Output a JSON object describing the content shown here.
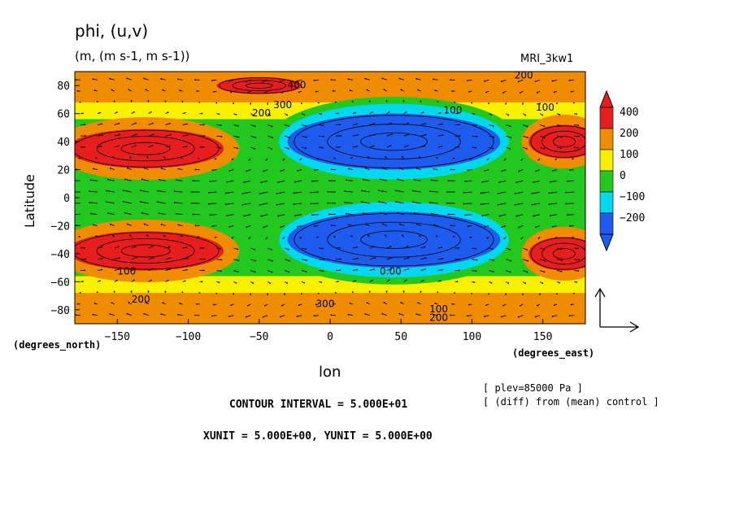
{
  "chart_data": {
    "type": "heatmap",
    "title": "phi, (u,v)",
    "units": "(m, (m s-1, m s-1))",
    "model": "MRI_3kw1",
    "xlabel": "lon",
    "ylabel": "Latitude",
    "x_unit_label": "(degrees_east)",
    "y_unit_label": "(degrees_north)",
    "xlim": [
      -180,
      180
    ],
    "ylim": [
      -90,
      90
    ],
    "x_ticks": [
      -150,
      -100,
      -50,
      0,
      50,
      100,
      150
    ],
    "x_tick_labels": [
      "−150",
      "−100",
      "−50",
      "0",
      "50",
      "100",
      "150"
    ],
    "y_ticks": [
      80,
      60,
      40,
      20,
      0,
      -20,
      -40,
      -60,
      -80
    ],
    "y_tick_labels": [
      "80",
      "60",
      "40",
      "20",
      "0",
      "−20",
      "−40",
      "−60",
      "−80"
    ],
    "colorbar": {
      "levels": [
        -200,
        -100,
        0,
        100,
        200,
        400
      ],
      "labels": [
        "400",
        "200",
        "100",
        "0",
        "−100",
        "−200"
      ],
      "colors": [
        "#1e5cf0",
        "#00d8f0",
        "#22c81e",
        "#f8f000",
        "#f08c00",
        "#e81e1e"
      ],
      "extend": "both"
    },
    "field_blobs": [
      {
        "lon": -130,
        "lat": 35,
        "rx": 55,
        "ry": 14,
        "level": 5
      },
      {
        "lon": -130,
        "lat": -38,
        "rx": 55,
        "ry": 14,
        "level": 5
      },
      {
        "lon": 165,
        "lat": 40,
        "rx": 25,
        "ry": 12,
        "level": 5
      },
      {
        "lon": 165,
        "lat": -40,
        "rx": 25,
        "ry": 12,
        "level": 5
      },
      {
        "lon": -50,
        "lat": 80,
        "rx": 30,
        "ry": 6,
        "level": 5
      },
      {
        "lon": 45,
        "lat": 40,
        "rx": 75,
        "ry": 20,
        "level": 0
      },
      {
        "lon": 45,
        "lat": -30,
        "rx": 75,
        "ry": 20,
        "level": 0
      }
    ],
    "contour_labels": [
      {
        "text": "400",
        "lon": -30,
        "lat": 78
      },
      {
        "text": "300",
        "lon": -40,
        "lat": 64
      },
      {
        "text": "200",
        "lon": -55,
        "lat": 58
      },
      {
        "text": "200",
        "lon": 130,
        "lat": 85
      },
      {
        "text": "100",
        "lon": 80,
        "lat": 60
      },
      {
        "text": "100",
        "lon": 145,
        "lat": 62
      },
      {
        "text": "200",
        "lon": -140,
        "lat": -75
      },
      {
        "text": "300",
        "lon": -10,
        "lat": -78
      },
      {
        "text": "100",
        "lon": 70,
        "lat": -82
      },
      {
        "text": "200",
        "lon": 70,
        "lat": -88
      },
      {
        "text": "0.00",
        "lon": 35,
        "lat": -55
      },
      {
        "text": "100",
        "lon": -150,
        "lat": -55
      }
    ],
    "vector_reference": {
      "xunit": 5.0,
      "yunit": 5.0
    }
  },
  "footer": {
    "contour_interval": "CONTOUR INTERVAL = 5.000E+01",
    "units_line": "XUNIT = 5.000E+00, YUNIT = 5.000E+00",
    "plev": "[ plev=85000 Pa ]",
    "diff_note": "[ (diff) from (mean) control ]"
  },
  "colors": {
    "red": "#e81e1e",
    "orange": "#f08c00",
    "yellow": "#f8f000",
    "green": "#22c81e",
    "cyan": "#00d8f0",
    "blue": "#1e5cf0"
  }
}
